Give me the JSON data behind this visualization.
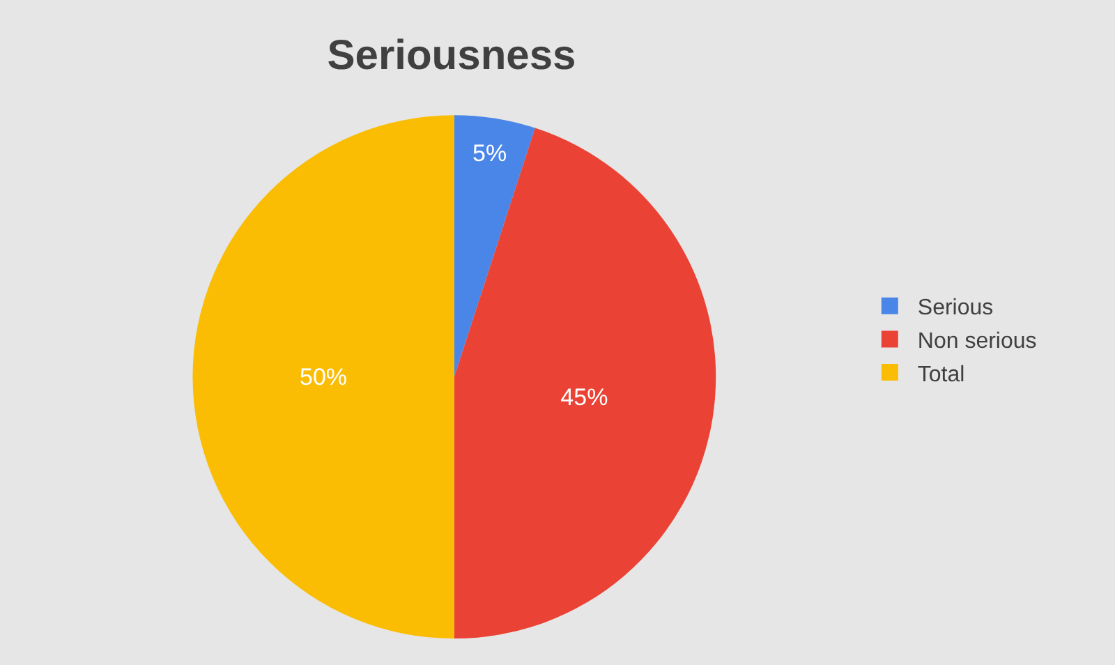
{
  "chart_data": {
    "type": "pie",
    "title": "Seriousness",
    "categories": [
      "Serious",
      "Non serious",
      "Total"
    ],
    "values": [
      5,
      45,
      50
    ],
    "colors": [
      "#4a86e8",
      "#ea4335",
      "#fbbc04"
    ],
    "value_labels": [
      "5%",
      "45%",
      "50%"
    ],
    "legend": "right"
  }
}
